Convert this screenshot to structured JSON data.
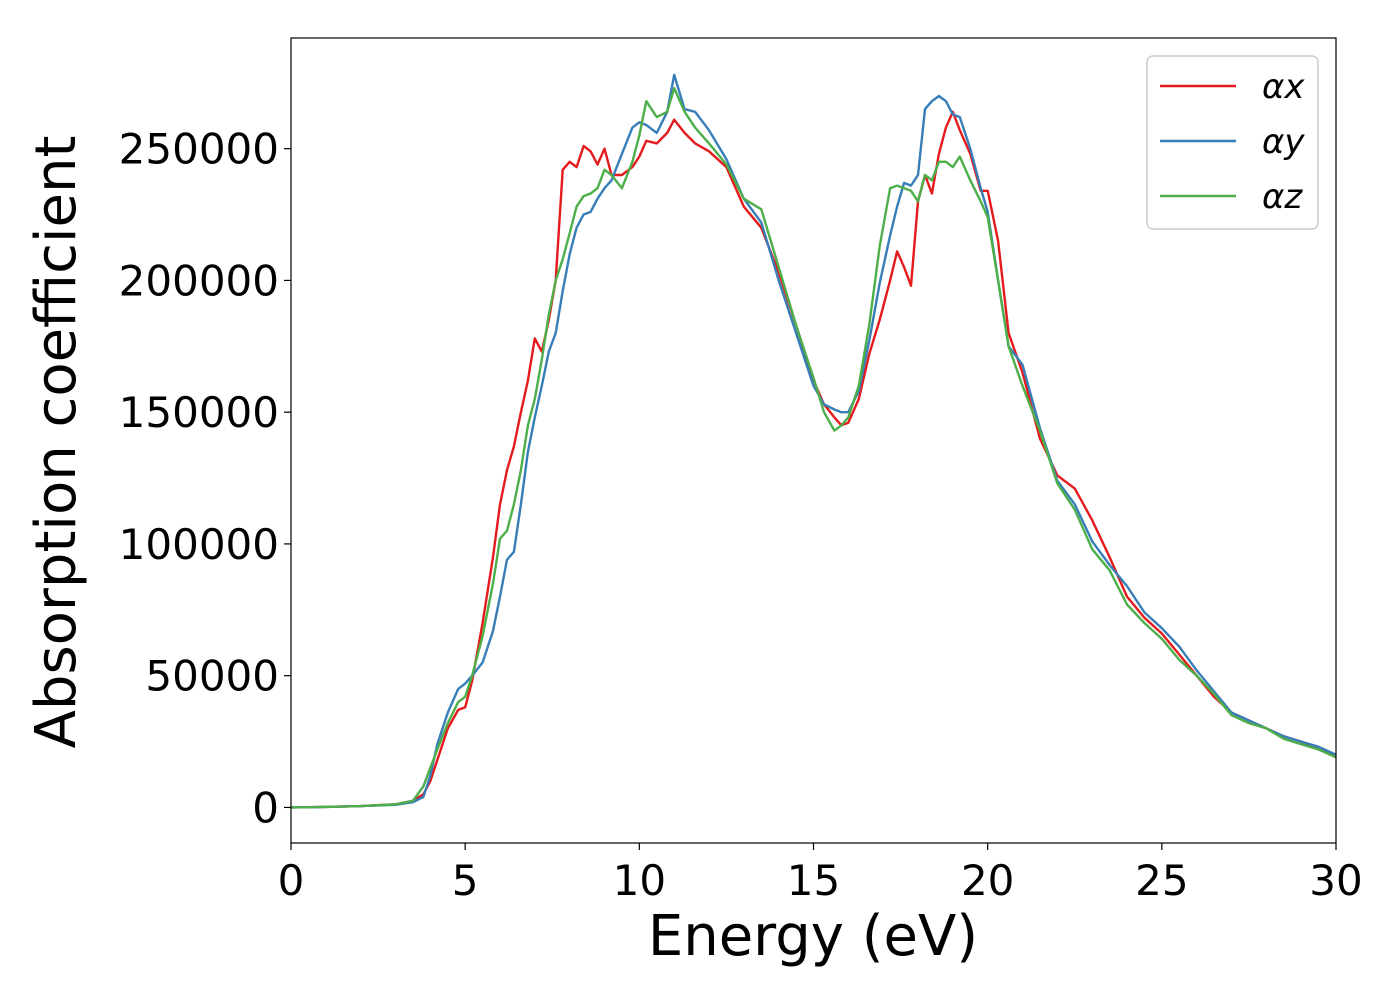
{
  "chart_data": {
    "type": "line",
    "xlabel": "Energy (eV)",
    "ylabel": "Absorption coefficient",
    "xlim": [
      0,
      30
    ],
    "ylim": [
      -13500,
      292000
    ],
    "xticks": [
      "0",
      "5",
      "10",
      "15",
      "20",
      "25",
      "30"
    ],
    "yticks": [
      "0",
      "50000",
      "100000",
      "150000",
      "200000",
      "250000"
    ],
    "grid": false,
    "legend_position": "top-right",
    "colors": {
      "alpha_x": "#e41a1c",
      "alpha_y": "#377eb8",
      "alpha_z": "#4daf4a"
    },
    "series": [
      {
        "name": "αx",
        "x": [
          0,
          1,
          2,
          3,
          3.5,
          3.8,
          4.0,
          4.2,
          4.5,
          4.8,
          5.0,
          5.2,
          5.5,
          5.8,
          6.0,
          6.2,
          6.4,
          6.6,
          6.8,
          7.0,
          7.2,
          7.4,
          7.6,
          7.8,
          8.0,
          8.2,
          8.4,
          8.6,
          8.8,
          9.0,
          9.2,
          9.5,
          9.8,
          10.0,
          10.2,
          10.5,
          10.8,
          11.0,
          11.3,
          11.6,
          12.0,
          12.5,
          13.0,
          13.5,
          14.0,
          14.5,
          15.0,
          15.3,
          15.6,
          15.8,
          16.0,
          16.3,
          16.6,
          16.9,
          17.2,
          17.4,
          17.6,
          17.8,
          18.0,
          18.2,
          18.4,
          18.6,
          18.8,
          19.0,
          19.2,
          19.5,
          19.8,
          20.0,
          20.3,
          20.6,
          21.0,
          21.5,
          22.0,
          22.5,
          23.0,
          23.5,
          24.0,
          24.5,
          25.0,
          25.5,
          26.0,
          26.5,
          27.0,
          27.5,
          28.0,
          28.5,
          29.0,
          29.5,
          30.0
        ],
        "y": [
          0,
          200,
          500,
          1200,
          2500,
          5000,
          10000,
          18000,
          30000,
          37000,
          38000,
          48000,
          70000,
          95000,
          115000,
          128000,
          137000,
          150000,
          162000,
          178000,
          173000,
          185000,
          200000,
          242000,
          245000,
          243000,
          251000,
          249000,
          244000,
          250000,
          240000,
          240000,
          243000,
          247000,
          253000,
          252000,
          256000,
          261000,
          256000,
          252000,
          249000,
          243000,
          228000,
          220000,
          203000,
          183000,
          162000,
          153000,
          148000,
          145000,
          146000,
          155000,
          172000,
          185000,
          200000,
          211000,
          205000,
          198000,
          230000,
          240000,
          233000,
          248000,
          258000,
          264000,
          257000,
          248000,
          234000,
          234000,
          215000,
          180000,
          165000,
          140000,
          126000,
          121000,
          109000,
          95000,
          80000,
          72000,
          66000,
          58000,
          50000,
          42000,
          36000,
          33000,
          30000,
          27000,
          25000,
          22000,
          20000
        ]
      },
      {
        "name": "αy",
        "x": [
          0,
          1,
          2,
          3,
          3.5,
          3.8,
          4.0,
          4.2,
          4.5,
          4.8,
          5.0,
          5.2,
          5.5,
          5.8,
          6.0,
          6.2,
          6.4,
          6.6,
          6.8,
          7.0,
          7.2,
          7.4,
          7.6,
          7.8,
          8.0,
          8.2,
          8.4,
          8.6,
          8.8,
          9.0,
          9.2,
          9.5,
          9.8,
          10.0,
          10.2,
          10.5,
          10.8,
          11.0,
          11.3,
          11.6,
          12.0,
          12.5,
          13.0,
          13.5,
          14.0,
          14.5,
          15.0,
          15.3,
          15.6,
          15.8,
          16.0,
          16.3,
          16.6,
          16.9,
          17.2,
          17.4,
          17.6,
          17.8,
          18.0,
          18.2,
          18.4,
          18.6,
          18.8,
          19.0,
          19.2,
          19.5,
          19.8,
          20.0,
          20.3,
          20.6,
          21.0,
          21.5,
          22.0,
          22.5,
          23.0,
          23.5,
          24.0,
          24.5,
          25.0,
          25.5,
          26.0,
          26.5,
          27.0,
          27.5,
          28.0,
          28.5,
          29.0,
          29.5,
          30.0
        ],
        "y": [
          0,
          200,
          500,
          1000,
          2000,
          4000,
          12000,
          24000,
          36000,
          45000,
          47000,
          50000,
          55000,
          67000,
          80000,
          94000,
          97000,
          115000,
          135000,
          148000,
          160000,
          173000,
          180000,
          196000,
          210000,
          220000,
          225000,
          226000,
          231000,
          235000,
          238000,
          248000,
          258000,
          260000,
          259000,
          256000,
          264000,
          278000,
          265000,
          264000,
          257000,
          246000,
          231000,
          222000,
          200000,
          180000,
          160000,
          153000,
          151000,
          150000,
          150000,
          158000,
          177000,
          199000,
          217000,
          228000,
          237000,
          236000,
          240000,
          265000,
          268000,
          270000,
          268000,
          263000,
          262000,
          250000,
          235000,
          226000,
          200000,
          175000,
          168000,
          144000,
          124000,
          115000,
          101000,
          92000,
          84000,
          74000,
          68000,
          61000,
          52000,
          44000,
          36000,
          33000,
          30000,
          27000,
          25000,
          23000,
          20000
        ]
      },
      {
        "name": "αz",
        "x": [
          0,
          1,
          2,
          3,
          3.5,
          3.8,
          4.0,
          4.2,
          4.5,
          4.8,
          5.0,
          5.2,
          5.5,
          5.8,
          6.0,
          6.2,
          6.4,
          6.6,
          6.8,
          7.0,
          7.2,
          7.4,
          7.6,
          7.8,
          8.0,
          8.2,
          8.4,
          8.6,
          8.8,
          9.0,
          9.2,
          9.5,
          9.8,
          10.0,
          10.2,
          10.5,
          10.8,
          11.0,
          11.3,
          11.6,
          12.0,
          12.5,
          13.0,
          13.5,
          14.0,
          14.5,
          15.0,
          15.3,
          15.6,
          15.8,
          16.0,
          16.3,
          16.6,
          16.9,
          17.2,
          17.4,
          17.6,
          17.8,
          18.0,
          18.2,
          18.4,
          18.6,
          18.8,
          19.0,
          19.2,
          19.5,
          19.8,
          20.0,
          20.3,
          20.6,
          21.0,
          21.5,
          22.0,
          22.5,
          23.0,
          23.5,
          24.0,
          24.5,
          25.0,
          25.5,
          26.0,
          26.5,
          27.0,
          27.5,
          28.0,
          28.5,
          29.0,
          29.5,
          30.0
        ],
        "y": [
          0,
          200,
          500,
          1200,
          2500,
          8000,
          15000,
          22000,
          32000,
          40000,
          42000,
          50000,
          65000,
          85000,
          102000,
          105000,
          115000,
          128000,
          145000,
          155000,
          170000,
          187000,
          200000,
          208000,
          218000,
          228000,
          232000,
          233000,
          235000,
          242000,
          240000,
          235000,
          245000,
          255000,
          268000,
          262000,
          264000,
          273000,
          264000,
          258000,
          252000,
          244000,
          231000,
          227000,
          205000,
          183000,
          163000,
          150000,
          143000,
          145000,
          148000,
          160000,
          183000,
          213000,
          235000,
          236000,
          235000,
          234000,
          230000,
          240000,
          238000,
          245000,
          245000,
          243000,
          247000,
          238000,
          230000,
          224000,
          200000,
          175000,
          160000,
          143000,
          123000,
          113000,
          98000,
          90000,
          77000,
          70000,
          64000,
          56000,
          50000,
          43000,
          35000,
          32000,
          30000,
          26000,
          24000,
          22000,
          19000
        ]
      }
    ]
  }
}
